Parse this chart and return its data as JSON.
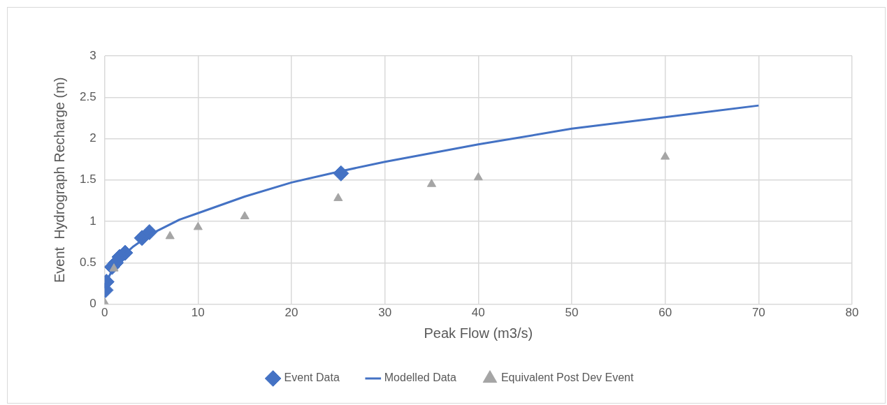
{
  "chart_data": {
    "type": "scatter",
    "xlabel": "Peak Flow (m3/s)",
    "ylabel": "Event  Hydrograph Recharge (m)",
    "xlim": [
      0,
      80
    ],
    "xticks": [
      0,
      10,
      20,
      30,
      40,
      50,
      60,
      70,
      80
    ],
    "ylim": [
      0,
      3
    ],
    "yticks": [
      0,
      0.5,
      1,
      1.5,
      2,
      2.5,
      3
    ],
    "grid": true,
    "legend": "bottom",
    "series": [
      {
        "name": "Event Data",
        "type": "scatter",
        "marker": "diamond",
        "color": "#4472c4",
        "x": [
          0.1,
          0.2,
          0.8,
          1.2,
          1.6,
          2.2,
          4,
          4.8,
          25.3
        ],
        "values": [
          0.17,
          0.27,
          0.45,
          0.5,
          0.57,
          0.62,
          0.8,
          0.87,
          1.58
        ]
      },
      {
        "name": "Modelled Data",
        "type": "line",
        "marker": "none",
        "color": "#4472c4",
        "x": [
          0.1,
          0.5,
          1,
          2,
          3,
          5,
          8,
          10,
          15,
          20,
          25,
          30,
          40,
          50,
          60,
          70
        ],
        "values": [
          0.18,
          0.34,
          0.45,
          0.59,
          0.69,
          0.85,
          1.02,
          1.1,
          1.3,
          1.47,
          1.6,
          1.72,
          1.93,
          2.12,
          2.26,
          2.4
        ]
      },
      {
        "name": "Equivalent Post Dev Event",
        "type": "scatter",
        "marker": "triangle",
        "color": "#a5a5a5",
        "x": [
          0,
          1,
          7,
          10,
          15,
          25,
          35,
          40,
          60
        ],
        "values": [
          0.02,
          0.43,
          0.82,
          0.93,
          1.06,
          1.28,
          1.45,
          1.53,
          1.78
        ]
      }
    ]
  }
}
